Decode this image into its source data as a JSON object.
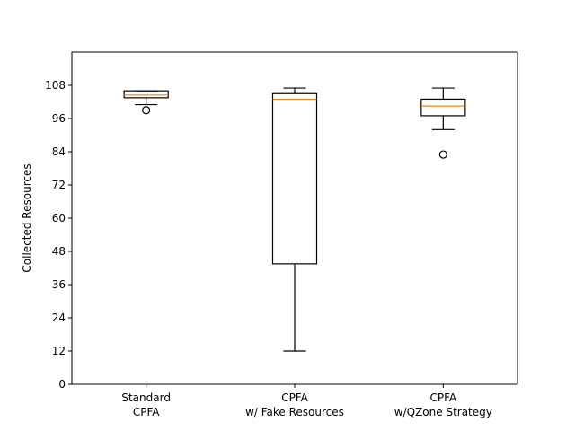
{
  "chart_data": {
    "type": "boxplot",
    "title": "",
    "xlabel": "",
    "ylabel": "Collected Resources",
    "ylim": [
      0,
      120
    ],
    "yticks": [
      0,
      12,
      24,
      36,
      48,
      60,
      72,
      84,
      96,
      108
    ],
    "grid": false,
    "legend": "none",
    "categories": [
      [
        "Standard",
        "CPFA"
      ],
      [
        "CPFA",
        "w/ Fake Resources"
      ],
      [
        "CPFA",
        "w/QZone Strategy"
      ]
    ],
    "boxes": [
      {
        "whisker_low": 101,
        "q1": 103.5,
        "median": 104.5,
        "q3": 106,
        "whisker_high": 106,
        "outliers": [
          99
        ]
      },
      {
        "whisker_low": 12,
        "q1": 43.5,
        "median": 103,
        "q3": 105,
        "whisker_high": 107,
        "outliers": []
      },
      {
        "whisker_low": 92,
        "q1": 97,
        "median": 100.5,
        "q3": 103,
        "whisker_high": 107,
        "outliers": [
          83
        ]
      }
    ],
    "colors": {
      "box": "#000000",
      "median": "#ff7f0e",
      "axes": "#000000"
    }
  }
}
